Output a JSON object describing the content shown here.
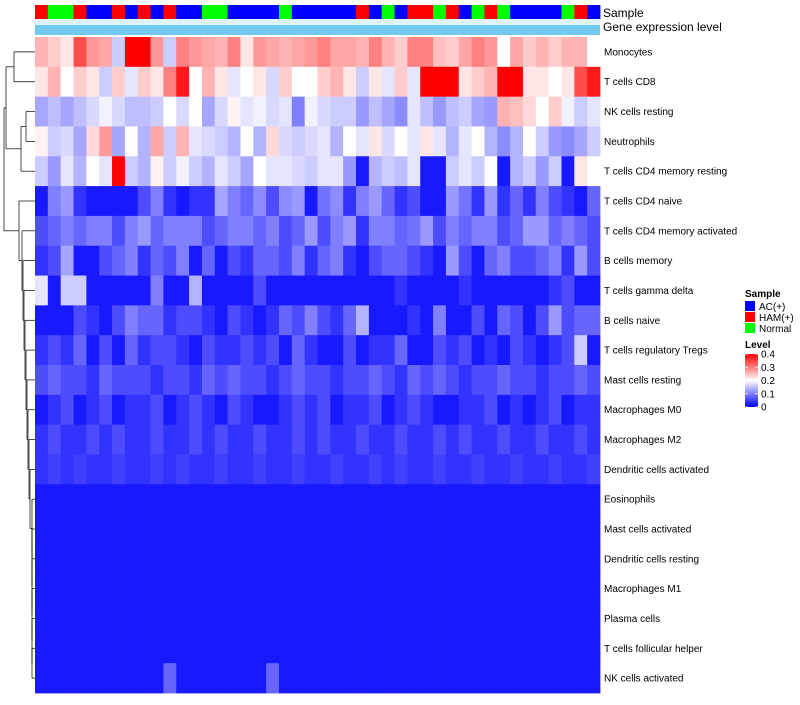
{
  "annotation_rows": [
    "Sample",
    "Gene expression level"
  ],
  "legend": {
    "sample_title": "Sample",
    "sample_items": [
      {
        "label": "AC(+)",
        "color": "#0000ff"
      },
      {
        "label": "HAM(+)",
        "color": "#ff0000"
      },
      {
        "label": "Normal",
        "color": "#00ff00"
      }
    ],
    "level_title": "Level",
    "level_ticks": [
      "0.4",
      "0.3",
      "0.2",
      "0.1",
      "0"
    ]
  },
  "colors": {
    "low": "#0000ff",
    "mid": "#ffffff",
    "high": "#ff0000",
    "expression_bar": "#72c8ee",
    "expression_bar_light": "#dff3fb"
  },
  "chart_data": {
    "type": "heatmap",
    "title": "",
    "value_range": [
      0,
      0.4
    ],
    "value_midpoint": 0.2,
    "sample_groups": [
      "HAM(+)",
      "Normal",
      "Normal",
      "HAM(+)",
      "AC(+)",
      "AC(+)",
      "HAM(+)",
      "AC(+)",
      "HAM(+)",
      "AC(+)",
      "HAM(+)",
      "AC(+)",
      "AC(+)",
      "Normal",
      "Normal",
      "AC(+)",
      "AC(+)",
      "AC(+)",
      "AC(+)",
      "Normal",
      "AC(+)",
      "AC(+)",
      "AC(+)",
      "AC(+)",
      "AC(+)",
      "HAM(+)",
      "AC(+)",
      "Normal",
      "AC(+)",
      "HAM(+)",
      "HAM(+)",
      "Normal",
      "HAM(+)",
      "AC(+)",
      "Normal",
      "HAM(+)",
      "Normal",
      "AC(+)",
      "AC(+)",
      "AC(+)",
      "AC(+)",
      "Normal",
      "HAM(+)",
      "AC(+)"
    ],
    "rows": [
      "Monocytes",
      "T cells CD8",
      "NK cells resting",
      "Neutrophils",
      "T cells CD4 memory resting",
      "T cells CD4 naive",
      "T cells CD4 memory activated",
      "B cells memory",
      "T cells gamma delta",
      "B cells naive",
      "T cells regulatory  Tregs",
      "Mast cells resting",
      "Macrophages M0",
      "Macrophages M2",
      "Dendritic cells activated",
      "Eosinophils",
      "Mast cells activated",
      "Dendritic cells resting",
      "Macrophages M1",
      "Plasma cells",
      "T cells follicular helper",
      "NK cells activated"
    ],
    "values": [
      [
        0.26,
        0.24,
        0.22,
        0.34,
        0.28,
        0.27,
        0.16,
        0.4,
        0.4,
        0.28,
        0.16,
        0.3,
        0.28,
        0.27,
        0.26,
        0.3,
        0.22,
        0.28,
        0.27,
        0.26,
        0.27,
        0.28,
        0.3,
        0.27,
        0.27,
        0.26,
        0.3,
        0.26,
        0.24,
        0.3,
        0.3,
        0.25,
        0.24,
        0.27,
        0.3,
        0.28,
        0.2,
        0.27,
        0.24,
        0.26,
        0.24,
        0.26,
        0.26,
        0.2
      ],
      [
        0.22,
        0.26,
        0.2,
        0.24,
        0.22,
        0.16,
        0.24,
        0.18,
        0.24,
        0.22,
        0.3,
        0.38,
        0.2,
        0.26,
        0.22,
        0.18,
        0.2,
        0.22,
        0.17,
        0.24,
        0.2,
        0.2,
        0.24,
        0.26,
        0.22,
        0.16,
        0.22,
        0.18,
        0.24,
        0.18,
        0.4,
        0.4,
        0.4,
        0.22,
        0.24,
        0.26,
        0.4,
        0.4,
        0.22,
        0.22,
        0.2,
        0.22,
        0.34,
        0.38
      ],
      [
        0.13,
        0.15,
        0.13,
        0.15,
        0.17,
        0.19,
        0.17,
        0.15,
        0.15,
        0.16,
        0.2,
        0.17,
        0.2,
        0.13,
        0.17,
        0.21,
        0.18,
        0.19,
        0.17,
        0.18,
        0.1,
        0.19,
        0.17,
        0.16,
        0.16,
        0.12,
        0.15,
        0.13,
        0.11,
        0.18,
        0.15,
        0.12,
        0.15,
        0.16,
        0.13,
        0.12,
        0.26,
        0.25,
        0.23,
        0.2,
        0.24,
        0.19,
        0.16,
        0.18
      ],
      [
        0.21,
        0.16,
        0.17,
        0.13,
        0.23,
        0.28,
        0.13,
        0.2,
        0.14,
        0.27,
        0.16,
        0.26,
        0.18,
        0.17,
        0.16,
        0.14,
        0.2,
        0.14,
        0.23,
        0.17,
        0.16,
        0.17,
        0.18,
        0.14,
        0.2,
        0.18,
        0.22,
        0.17,
        0.2,
        0.18,
        0.22,
        0.18,
        0.14,
        0.18,
        0.2,
        0.14,
        0.11,
        0.14,
        0.2,
        0.16,
        0.12,
        0.11,
        0.13,
        0.16
      ],
      [
        0.16,
        0.12,
        0.18,
        0.14,
        0.2,
        0.18,
        0.4,
        0.16,
        0.14,
        0.21,
        0.16,
        0.19,
        0.16,
        0.14,
        0.18,
        0.16,
        0.13,
        0.2,
        0.18,
        0.18,
        0.17,
        0.16,
        0.18,
        0.18,
        0.12,
        0.02,
        0.14,
        0.16,
        0.15,
        0.18,
        0.02,
        0.02,
        0.16,
        0.18,
        0.16,
        0.2,
        0.02,
        0.14,
        0.16,
        0.12,
        0.16,
        0.02,
        0.22,
        0.2
      ],
      [
        0.02,
        0.1,
        0.12,
        0.04,
        0.02,
        0.02,
        0.02,
        0.02,
        0.06,
        0.1,
        0.04,
        0.02,
        0.04,
        0.04,
        0.13,
        0.1,
        0.08,
        0.11,
        0.06,
        0.11,
        0.12,
        0.02,
        0.09,
        0.11,
        0.04,
        0.1,
        0.12,
        0.08,
        0.04,
        0.06,
        0.02,
        0.02,
        0.12,
        0.09,
        0.04,
        0.12,
        0.04,
        0.08,
        0.04,
        0.1,
        0.06,
        0.04,
        0.02,
        0.08
      ],
      [
        0.06,
        0.08,
        0.1,
        0.08,
        0.1,
        0.1,
        0.06,
        0.1,
        0.12,
        0.08,
        0.1,
        0.1,
        0.1,
        0.06,
        0.08,
        0.1,
        0.1,
        0.08,
        0.1,
        0.06,
        0.08,
        0.12,
        0.06,
        0.1,
        0.12,
        0.04,
        0.1,
        0.1,
        0.08,
        0.09,
        0.12,
        0.06,
        0.1,
        0.08,
        0.1,
        0.1,
        0.06,
        0.08,
        0.12,
        0.12,
        0.08,
        0.1,
        0.08,
        0.06
      ],
      [
        0.04,
        0.06,
        0.13,
        0.02,
        0.02,
        0.06,
        0.08,
        0.1,
        0.04,
        0.08,
        0.06,
        0.1,
        0.02,
        0.08,
        0.02,
        0.06,
        0.04,
        0.08,
        0.08,
        0.06,
        0.1,
        0.04,
        0.08,
        0.1,
        0.04,
        0.02,
        0.06,
        0.08,
        0.08,
        0.06,
        0.04,
        0.02,
        0.12,
        0.06,
        0.02,
        0.08,
        0.1,
        0.06,
        0.06,
        0.08,
        0.1,
        0.04,
        0.12,
        0.06
      ],
      [
        0.18,
        0.02,
        0.16,
        0.16,
        0.02,
        0.02,
        0.02,
        0.02,
        0.02,
        0.1,
        0.02,
        0.02,
        0.14,
        0.02,
        0.02,
        0.02,
        0.02,
        0.06,
        0.02,
        0.02,
        0.02,
        0.02,
        0.02,
        0.02,
        0.02,
        0.02,
        0.02,
        0.02,
        0.04,
        0.02,
        0.02,
        0.02,
        0.02,
        0.04,
        0.02,
        0.02,
        0.02,
        0.02,
        0.02,
        0.02,
        0.04,
        0.06,
        0.02,
        0.02
      ],
      [
        0.02,
        0.02,
        0.02,
        0.06,
        0.04,
        0.02,
        0.06,
        0.1,
        0.08,
        0.08,
        0.04,
        0.06,
        0.06,
        0.04,
        0.02,
        0.06,
        0.04,
        0.02,
        0.04,
        0.08,
        0.06,
        0.1,
        0.06,
        0.04,
        0.08,
        0.14,
        0.02,
        0.02,
        0.02,
        0.04,
        0.02,
        0.1,
        0.02,
        0.02,
        0.06,
        0.02,
        0.08,
        0.06,
        0.02,
        0.06,
        0.12,
        0.06,
        0.08,
        0.08
      ],
      [
        0.04,
        0.06,
        0.04,
        0.08,
        0.02,
        0.06,
        0.02,
        0.08,
        0.04,
        0.06,
        0.06,
        0.04,
        0.02,
        0.06,
        0.04,
        0.04,
        0.06,
        0.04,
        0.06,
        0.02,
        0.08,
        0.04,
        0.02,
        0.02,
        0.06,
        0.02,
        0.04,
        0.04,
        0.08,
        0.02,
        0.02,
        0.06,
        0.04,
        0.06,
        0.02,
        0.04,
        0.02,
        0.06,
        0.04,
        0.02,
        0.04,
        0.06,
        0.16,
        0.02
      ],
      [
        0.06,
        0.08,
        0.06,
        0.06,
        0.04,
        0.08,
        0.06,
        0.06,
        0.06,
        0.04,
        0.06,
        0.06,
        0.04,
        0.08,
        0.06,
        0.08,
        0.06,
        0.06,
        0.04,
        0.06,
        0.08,
        0.06,
        0.06,
        0.04,
        0.06,
        0.06,
        0.08,
        0.06,
        0.04,
        0.08,
        0.06,
        0.08,
        0.06,
        0.04,
        0.06,
        0.06,
        0.08,
        0.06,
        0.06,
        0.04,
        0.06,
        0.06,
        0.08,
        0.06
      ],
      [
        0.02,
        0.04,
        0.06,
        0.02,
        0.04,
        0.06,
        0.02,
        0.04,
        0.04,
        0.06,
        0.02,
        0.04,
        0.06,
        0.04,
        0.02,
        0.06,
        0.04,
        0.02,
        0.02,
        0.04,
        0.06,
        0.04,
        0.06,
        0.02,
        0.04,
        0.04,
        0.06,
        0.02,
        0.04,
        0.06,
        0.04,
        0.02,
        0.02,
        0.04,
        0.04,
        0.06,
        0.02,
        0.04,
        0.02,
        0.04,
        0.06,
        0.02,
        0.04,
        0.04
      ],
      [
        0.04,
        0.06,
        0.04,
        0.04,
        0.06,
        0.04,
        0.06,
        0.04,
        0.04,
        0.06,
        0.04,
        0.04,
        0.06,
        0.04,
        0.06,
        0.04,
        0.04,
        0.06,
        0.04,
        0.04,
        0.06,
        0.04,
        0.06,
        0.04,
        0.04,
        0.06,
        0.04,
        0.04,
        0.06,
        0.04,
        0.04,
        0.06,
        0.04,
        0.06,
        0.04,
        0.04,
        0.06,
        0.04,
        0.04,
        0.06,
        0.04,
        0.04,
        0.06,
        0.04
      ],
      [
        0.04,
        0.05,
        0.04,
        0.05,
        0.04,
        0.04,
        0.05,
        0.04,
        0.04,
        0.05,
        0.04,
        0.05,
        0.04,
        0.04,
        0.05,
        0.04,
        0.04,
        0.05,
        0.04,
        0.04,
        0.05,
        0.04,
        0.04,
        0.05,
        0.04,
        0.04,
        0.05,
        0.04,
        0.05,
        0.04,
        0.04,
        0.05,
        0.04,
        0.04,
        0.05,
        0.04,
        0.04,
        0.05,
        0.04,
        0.04,
        0.05,
        0.04,
        0.04,
        0.05
      ],
      [
        0.02,
        0.02,
        0.02,
        0.02,
        0.02,
        0.02,
        0.02,
        0.02,
        0.02,
        0.02,
        0.02,
        0.02,
        0.02,
        0.02,
        0.02,
        0.02,
        0.02,
        0.02,
        0.02,
        0.02,
        0.02,
        0.02,
        0.02,
        0.02,
        0.02,
        0.02,
        0.02,
        0.02,
        0.02,
        0.02,
        0.02,
        0.02,
        0.02,
        0.02,
        0.02,
        0.02,
        0.02,
        0.02,
        0.02,
        0.02,
        0.02,
        0.02,
        0.02,
        0.02
      ],
      [
        0.02,
        0.02,
        0.02,
        0.02,
        0.02,
        0.02,
        0.02,
        0.02,
        0.02,
        0.02,
        0.02,
        0.02,
        0.02,
        0.02,
        0.02,
        0.02,
        0.02,
        0.02,
        0.02,
        0.02,
        0.02,
        0.02,
        0.02,
        0.02,
        0.02,
        0.02,
        0.02,
        0.02,
        0.02,
        0.02,
        0.02,
        0.02,
        0.02,
        0.02,
        0.02,
        0.02,
        0.02,
        0.02,
        0.02,
        0.02,
        0.02,
        0.02,
        0.02,
        0.02
      ],
      [
        0.02,
        0.02,
        0.02,
        0.02,
        0.02,
        0.02,
        0.02,
        0.02,
        0.02,
        0.02,
        0.02,
        0.02,
        0.02,
        0.02,
        0.02,
        0.02,
        0.02,
        0.02,
        0.02,
        0.02,
        0.02,
        0.02,
        0.02,
        0.02,
        0.02,
        0.02,
        0.02,
        0.02,
        0.02,
        0.02,
        0.02,
        0.02,
        0.02,
        0.02,
        0.02,
        0.02,
        0.02,
        0.02,
        0.02,
        0.02,
        0.02,
        0.02,
        0.02,
        0.02
      ],
      [
        0.02,
        0.02,
        0.02,
        0.02,
        0.02,
        0.02,
        0.02,
        0.02,
        0.02,
        0.02,
        0.02,
        0.02,
        0.02,
        0.02,
        0.02,
        0.02,
        0.02,
        0.02,
        0.02,
        0.02,
        0.02,
        0.02,
        0.02,
        0.02,
        0.02,
        0.02,
        0.02,
        0.02,
        0.02,
        0.02,
        0.02,
        0.02,
        0.02,
        0.02,
        0.02,
        0.02,
        0.02,
        0.02,
        0.02,
        0.02,
        0.02,
        0.02,
        0.02,
        0.02
      ],
      [
        0.02,
        0.02,
        0.02,
        0.02,
        0.02,
        0.02,
        0.02,
        0.02,
        0.02,
        0.02,
        0.02,
        0.02,
        0.02,
        0.02,
        0.02,
        0.02,
        0.02,
        0.02,
        0.02,
        0.02,
        0.02,
        0.02,
        0.02,
        0.02,
        0.02,
        0.02,
        0.02,
        0.02,
        0.02,
        0.02,
        0.02,
        0.02,
        0.02,
        0.02,
        0.02,
        0.02,
        0.02,
        0.02,
        0.02,
        0.02,
        0.02,
        0.02,
        0.02,
        0.02
      ],
      [
        0.02,
        0.02,
        0.02,
        0.02,
        0.02,
        0.02,
        0.02,
        0.02,
        0.02,
        0.02,
        0.02,
        0.02,
        0.02,
        0.02,
        0.02,
        0.02,
        0.02,
        0.02,
        0.02,
        0.02,
        0.02,
        0.02,
        0.02,
        0.02,
        0.02,
        0.02,
        0.02,
        0.02,
        0.02,
        0.02,
        0.02,
        0.02,
        0.02,
        0.02,
        0.02,
        0.02,
        0.02,
        0.02,
        0.02,
        0.02,
        0.02,
        0.02,
        0.02,
        0.02
      ],
      [
        0.02,
        0.02,
        0.02,
        0.02,
        0.02,
        0.02,
        0.02,
        0.02,
        0.02,
        0.02,
        0.08,
        0.02,
        0.02,
        0.02,
        0.02,
        0.02,
        0.02,
        0.02,
        0.08,
        0.02,
        0.02,
        0.02,
        0.02,
        0.02,
        0.02,
        0.02,
        0.02,
        0.02,
        0.02,
        0.02,
        0.02,
        0.02,
        0.02,
        0.02,
        0.02,
        0.02,
        0.02,
        0.02,
        0.02,
        0.02,
        0.02,
        0.02,
        0.02,
        0.02
      ]
    ]
  }
}
